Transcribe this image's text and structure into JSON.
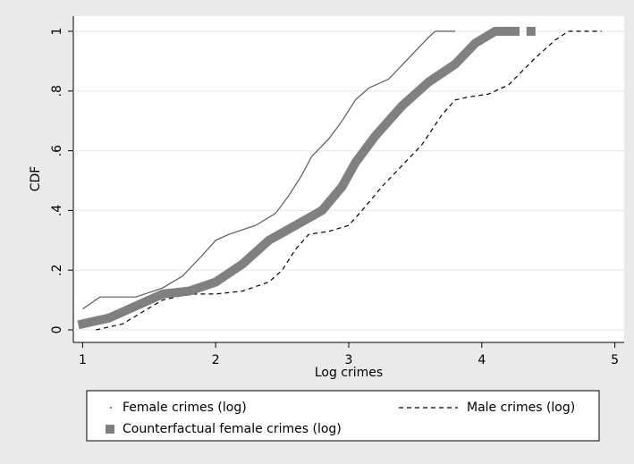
{
  "chart_data": {
    "type": "line",
    "x_label": "Log crimes",
    "y_label": "CDF",
    "xlim": [
      0.93,
      5.07
    ],
    "ylim": [
      -0.042,
      1.051
    ],
    "xticks": [
      1,
      2,
      3,
      4,
      5
    ],
    "yticks": [
      0,
      {
        "value": 0.2,
        "label": ".2"
      },
      {
        "value": 0.4,
        "label": ".4"
      },
      {
        "value": 0.6,
        "label": ".6"
      },
      {
        "value": 0.8,
        "label": ".8"
      },
      1
    ],
    "grid": true,
    "series": [
      {
        "name": "Female crimes (log)",
        "color": "#5a5a5a",
        "style": "thin",
        "x": [
          1.0,
          1.13,
          1.4,
          1.6,
          1.75,
          1.9,
          2.0,
          2.1,
          2.3,
          2.45,
          2.55,
          2.65,
          2.72,
          2.85,
          2.95,
          3.05,
          3.15,
          3.3,
          3.45,
          3.6,
          3.65,
          3.8
        ],
        "values": [
          0.07,
          0.11,
          0.11,
          0.14,
          0.18,
          0.25,
          0.3,
          0.32,
          0.35,
          0.39,
          0.45,
          0.52,
          0.58,
          0.64,
          0.7,
          0.77,
          0.81,
          0.84,
          0.91,
          0.98,
          1.0,
          1.0
        ]
      },
      {
        "name": "Male crimes (log)",
        "color": "#000000",
        "style": "dashed",
        "x": [
          1.1,
          1.3,
          1.45,
          1.6,
          1.8,
          2.0,
          2.2,
          2.4,
          2.5,
          2.6,
          2.7,
          2.85,
          3.0,
          3.1,
          3.25,
          3.4,
          3.55,
          3.7,
          3.8,
          3.9,
          4.05,
          4.2,
          4.4,
          4.55,
          4.65,
          4.9
        ],
        "values": [
          0.0,
          0.02,
          0.06,
          0.1,
          0.12,
          0.12,
          0.13,
          0.16,
          0.2,
          0.27,
          0.32,
          0.33,
          0.35,
          0.4,
          0.48,
          0.55,
          0.62,
          0.72,
          0.77,
          0.78,
          0.79,
          0.82,
          0.91,
          0.97,
          1.0,
          1.0
        ]
      },
      {
        "name": "Counterfactual female crimes (log)",
        "color": "#808080",
        "style": "thick",
        "x": [
          1.0,
          1.2,
          1.4,
          1.6,
          1.8,
          2.0,
          2.2,
          2.4,
          2.6,
          2.8,
          2.95,
          3.05,
          3.2,
          3.4,
          3.6,
          3.8,
          3.95,
          4.1,
          4.25,
          null,
          4.37
        ],
        "values": [
          0.02,
          0.04,
          0.08,
          0.12,
          0.13,
          0.16,
          0.22,
          0.3,
          0.35,
          0.4,
          0.48,
          0.56,
          0.65,
          0.75,
          0.83,
          0.89,
          0.96,
          1.0,
          1.0,
          null,
          1.0
        ]
      }
    ]
  }
}
